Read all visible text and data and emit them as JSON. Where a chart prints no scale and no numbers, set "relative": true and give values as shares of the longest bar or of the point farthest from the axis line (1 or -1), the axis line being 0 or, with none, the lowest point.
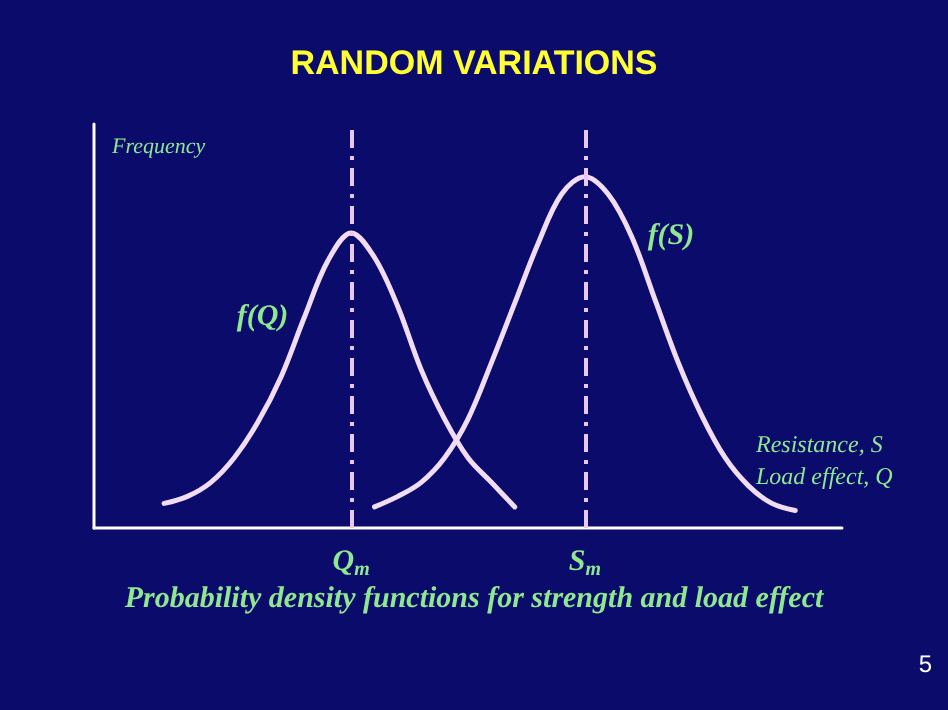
{
  "chart_data": {
    "type": "line",
    "title": "RANDOM VARIATIONS",
    "subtitle": "Probability density functions for strength and load effect",
    "xlabel": "Resistance, S\nLoad effect, Q",
    "ylabel": "Frequency",
    "annotations": [
      "5"
    ],
    "relative": true,
    "categories": [
      null,
      null,
      null,
      null,
      null,
      null,
      null,
      null,
      null,
      null,
      null,
      "Q$_{m}$",
      null,
      null,
      null,
      null,
      null,
      null,
      null,
      null,
      null,
      "S$_{m}$",
      null,
      null,
      null,
      null,
      null,
      null,
      null,
      null,
      null,
      null,
      null
    ],
    "series": [
      {
        "name": "f(Q)",
        "color": "#f2dcf2",
        "values": [
          null,
          null,
          null,
          0.07,
          0.09,
          0.13,
          0.2,
          0.3,
          0.43,
          0.6,
          0.76,
          0.84,
          0.77,
          0.63,
          0.45,
          0.31,
          0.2,
          0.13,
          0.06,
          null,
          null,
          null,
          null,
          null,
          null,
          null,
          null,
          null,
          null,
          null,
          null,
          null,
          null
        ]
      },
      {
        "name": "f(S)",
        "color": "#f2dcf2",
        "values": [
          null,
          null,
          null,
          null,
          null,
          null,
          null,
          null,
          null,
          null,
          null,
          null,
          0.06,
          0.09,
          0.13,
          0.2,
          0.31,
          0.47,
          0.64,
          0.81,
          0.95,
          1,
          0.95,
          0.83,
          0.65,
          0.47,
          0.32,
          0.2,
          0.12,
          0.07,
          0.05,
          null,
          null
        ]
      }
    ],
    "ref_lines": [
      {
        "axis": "x",
        "value": "Q$_{m}$",
        "color": "#e8c8f0",
        "line_style": "dashed"
      },
      {
        "axis": "x",
        "value": "S$_{m}$",
        "color": "#e8c8f0",
        "line_style": "dashed"
      }
    ],
    "grid": false,
    "legend": false,
    "marker": "none",
    "line_style": "solid",
    "tick_labels": "x"
  }
}
